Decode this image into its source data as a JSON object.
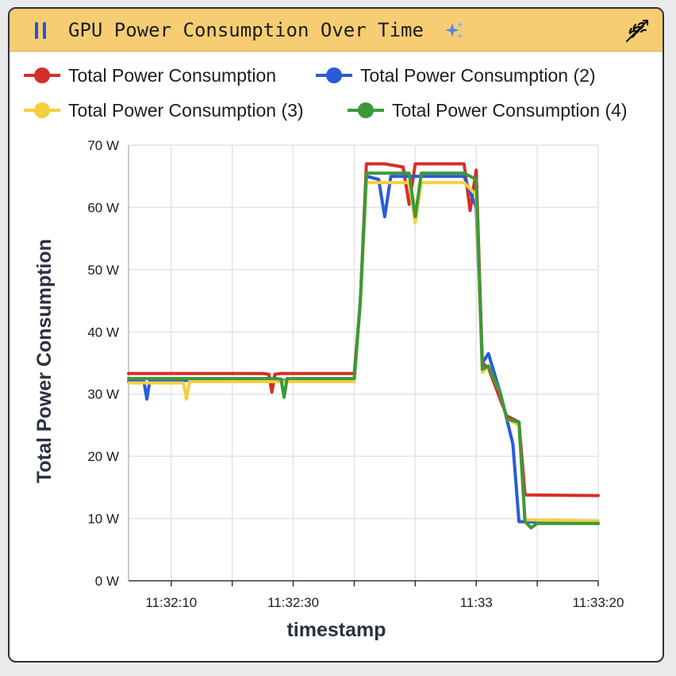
{
  "header": {
    "title": "GPU Power Consumption Over Time",
    "left_icon": "pause-icon",
    "ai_icon": "sparkle-icon",
    "right_icon": "wheat-icon",
    "bg_color": "#f7cd73"
  },
  "chart_data": {
    "type": "line",
    "xlabel": "timestamp",
    "ylabel": "Total Power Consumption",
    "ylim": [
      0,
      70
    ],
    "xlim": [
      "11:32:03",
      "11:33:20"
    ],
    "yticks": [
      0,
      10,
      20,
      30,
      40,
      50,
      60,
      70
    ],
    "ytick_labels": [
      "0 W",
      "10 W",
      "20 W",
      "30 W",
      "40 W",
      "50 W",
      "60 W",
      "70 W"
    ],
    "xticks": [
      "11:32:10",
      "11:32:20",
      "11:32:30",
      "11:32:40",
      "11:32:50",
      "11:33:00",
      "11:33:10",
      "11:33:20"
    ],
    "xtick_labels": [
      "11:32:10",
      "",
      "11:32:30",
      "",
      "",
      "11:33",
      "",
      "11:33:20"
    ],
    "grid": true,
    "legend_position": "top",
    "series": [
      {
        "name": "Total Power Consumption",
        "color": "#d62f2a",
        "x": [
          "11:32:03",
          "11:32:25",
          "11:32:26",
          "11:32:26.5",
          "11:32:27",
          "11:32:28",
          "11:32:40",
          "11:32:41",
          "11:32:42",
          "11:32:45",
          "11:32:48",
          "11:32:49",
          "11:32:50",
          "11:32:55",
          "11:32:58",
          "11:32:59",
          "11:33:00",
          "11:33:01",
          "11:33:02",
          "11:33:04",
          "11:33:05",
          "11:33:07",
          "11:33:08",
          "11:33:20"
        ],
        "y": [
          33.3,
          33.3,
          33.2,
          30.3,
          33.2,
          33.3,
          33.3,
          45,
          67,
          67,
          66.5,
          60.5,
          67,
          67,
          67,
          59.5,
          66,
          35,
          34.2,
          29,
          26.5,
          25.5,
          13.8,
          13.7
        ]
      },
      {
        "name": "Total Power Consumption (2)",
        "color": "#2a5bd8",
        "x": [
          "11:32:03",
          "11:32:05.5",
          "11:32:06",
          "11:32:06.5",
          "11:32:07",
          "11:32:40",
          "11:32:41",
          "11:32:42",
          "11:32:44",
          "11:32:45",
          "11:32:46",
          "11:32:52",
          "11:32:58",
          "11:33:00",
          "11:33:01",
          "11:33:02",
          "11:33:04",
          "11:33:06",
          "11:33:07",
          "11:33:20"
        ],
        "y": [
          32,
          32.2,
          29.2,
          32.2,
          32.2,
          32.2,
          45,
          65,
          64.5,
          58.5,
          65,
          65,
          65,
          60,
          35,
          36.5,
          30,
          22,
          9.5,
          9.2
        ]
      },
      {
        "name": "Total Power Consumption (3)",
        "color": "#f6cf3e",
        "x": [
          "11:32:03",
          "11:32:12",
          "11:32:12.5",
          "11:32:13",
          "11:32:40",
          "11:32:41",
          "11:32:42",
          "11:32:49",
          "11:32:50",
          "11:32:51",
          "11:32:58",
          "11:33:00",
          "11:33:01",
          "11:33:02",
          "11:33:04",
          "11:33:05",
          "11:33:07",
          "11:33:08",
          "11:33:20"
        ],
        "y": [
          31.8,
          31.8,
          29.2,
          32,
          32,
          45,
          64,
          64,
          57.5,
          64,
          64,
          62,
          33.5,
          34.5,
          30,
          26,
          25,
          9.8,
          9.6
        ]
      },
      {
        "name": "Total Power Consumption (4)",
        "color": "#3a9a3a",
        "x": [
          "11:32:03",
          "11:32:27",
          "11:32:28",
          "11:32:28.5",
          "11:32:29",
          "11:32:40",
          "11:32:41",
          "11:32:42",
          "11:32:49",
          "11:32:50",
          "11:32:51",
          "11:32:58",
          "11:33:00",
          "11:33:01",
          "11:33:02",
          "11:33:04",
          "11:33:05",
          "11:33:07",
          "11:33:08",
          "11:33:09",
          "11:33:10",
          "11:33:20"
        ],
        "y": [
          32.5,
          32.5,
          32.4,
          29.5,
          32.5,
          32.5,
          45,
          65.5,
          65.5,
          58.5,
          65.5,
          65.5,
          64.5,
          34,
          34.5,
          30,
          26,
          25.5,
          9.5,
          8.5,
          9.2,
          9.2
        ]
      }
    ]
  }
}
